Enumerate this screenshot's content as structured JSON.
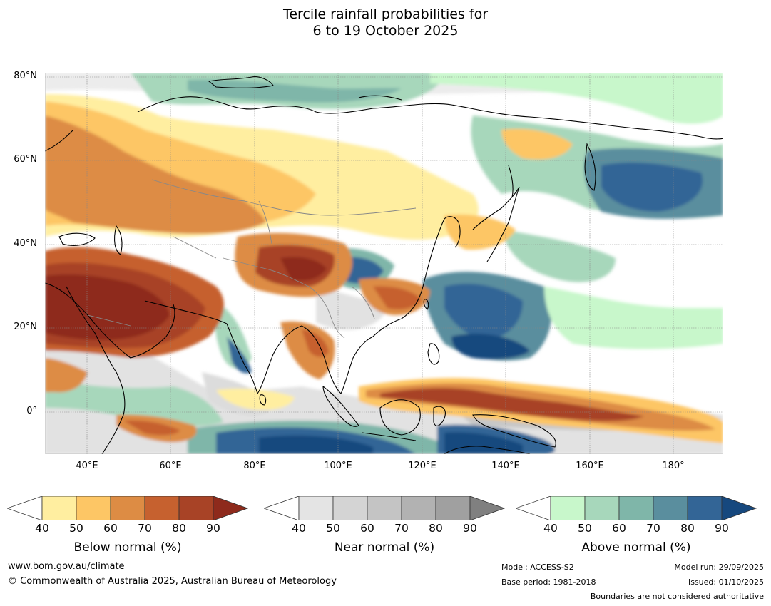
{
  "title": {
    "line1": "Tercile rainfall probabilities for",
    "line2": "6 to 19 October 2025"
  },
  "map": {
    "lat_labels": [
      "80°N",
      "60°N",
      "40°N",
      "20°N",
      "0°"
    ],
    "lon_labels": [
      "40°E",
      "60°E",
      "80°E",
      "100°E",
      "120°E",
      "140°E",
      "160°E",
      "180°"
    ],
    "lat_range": [
      -10,
      81
    ],
    "lon_range": [
      30,
      192
    ]
  },
  "colorbars": [
    {
      "name": "below",
      "title": "Below normal (%)",
      "ticks": [
        "40",
        "50",
        "60",
        "70",
        "80",
        "90"
      ],
      "colors": [
        "#ffeea0",
        "#fdc665",
        "#dd8c44",
        "#c6612f",
        "#a84326",
        "#8e2a1c"
      ]
    },
    {
      "name": "near",
      "title": "Near normal (%)",
      "ticks": [
        "40",
        "50",
        "60",
        "70",
        "80",
        "90"
      ],
      "colors": [
        "#e4e4e4",
        "#d4d4d4",
        "#c4c4c4",
        "#b2b2b2",
        "#a0a0a0",
        "#808080"
      ]
    },
    {
      "name": "above",
      "title": "Above normal (%)",
      "ticks": [
        "40",
        "50",
        "60",
        "70",
        "80",
        "90"
      ],
      "colors": [
        "#c8f7cb",
        "#a7d7bb",
        "#7fb6a9",
        "#5a8e9e",
        "#336596",
        "#16487e"
      ]
    }
  ],
  "footer": {
    "website": "www.bom.gov.au/climate",
    "copyright": "© Commonwealth of Australia 2025, Australian Bureau of Meteorology",
    "model": "Model: ACCESS-S2",
    "base_period": "Base period: 1981-2018",
    "model_run": "Model run: 29/09/2025",
    "issued": "Issued: 01/10/2025",
    "disclaimer": "Boundaries are not considered authoritative"
  }
}
